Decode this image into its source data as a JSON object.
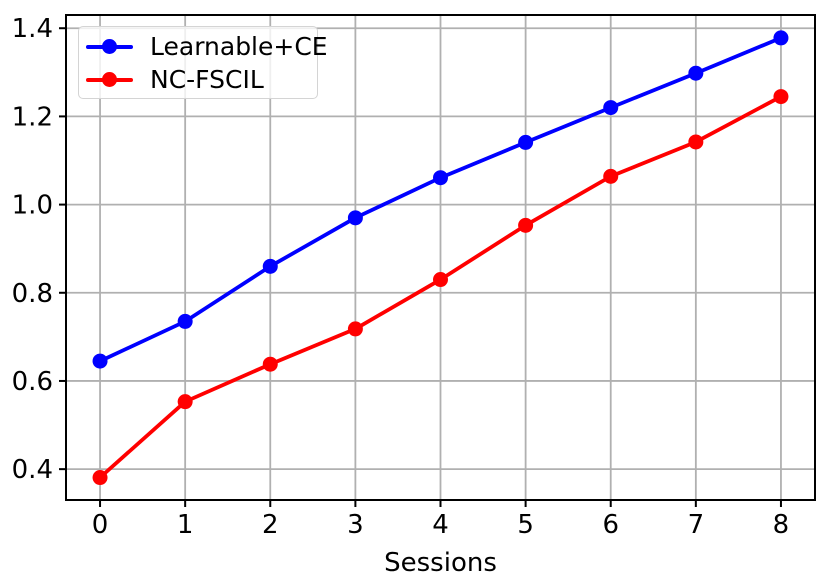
{
  "chart_data": {
    "type": "line",
    "title": "",
    "xlabel": "Sessions",
    "ylabel": "",
    "x": [
      0,
      1,
      2,
      3,
      4,
      5,
      6,
      7,
      8
    ],
    "x_tick_labels": [
      "0",
      "1",
      "2",
      "3",
      "4",
      "5",
      "6",
      "7",
      "8"
    ],
    "y_ticks": [
      0.4,
      0.6,
      0.8,
      1.0,
      1.2,
      1.4
    ],
    "y_tick_labels": [
      "0.4",
      "0.6",
      "0.8",
      "1.0",
      "1.2",
      "1.4"
    ],
    "xlim": [
      -0.4,
      8.4
    ],
    "ylim": [
      0.33,
      1.43
    ],
    "grid": true,
    "legend_position": "upper-left",
    "series": [
      {
        "name": "Learnable+CE",
        "color": "#0000ff",
        "marker": "circle",
        "values": [
          0.645,
          0.735,
          0.86,
          0.97,
          1.061,
          1.141,
          1.22,
          1.298,
          1.378
        ]
      },
      {
        "name": "NC-FSCIL",
        "color": "#ff0000",
        "marker": "circle",
        "values": [
          0.381,
          0.553,
          0.638,
          0.718,
          0.83,
          0.953,
          1.064,
          1.142,
          1.245
        ]
      }
    ],
    "colors": {
      "grid": "#b0b0b0",
      "axis": "#000000",
      "tick_label": "#000000",
      "background": "#ffffff"
    }
  }
}
